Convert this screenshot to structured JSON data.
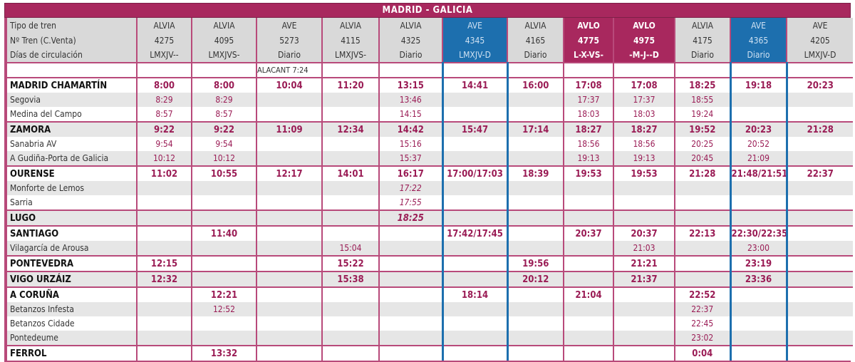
{
  "title": "MADRID - GALICIA",
  "header_labels": [
    "Tipo de tren",
    "Nº Tren (C.Venta)",
    "Días de circulación"
  ],
  "trains": [
    {
      "type": "ALVIA",
      "number": "4275",
      "days": "LMXJV--"
    },
    {
      "type": "ALVIA",
      "number": "4095",
      "days": "LMXJVS-"
    },
    {
      "type": "AVE",
      "number": "5273",
      "days": "Diario"
    },
    {
      "type": "ALVIA",
      "number": "4115",
      "days": "LMXJVS-"
    },
    {
      "type": "ALVIA",
      "number": "4325",
      "days": "Diario"
    },
    {
      "type": "AVE",
      "number": "4345",
      "days": "LMXJV-D"
    },
    {
      "type": "ALVIA",
      "number": "4165",
      "days": "Diario"
    },
    {
      "type": "AVLO",
      "number": "4775",
      "days": "L-X-VS-"
    },
    {
      "type": "AVLO",
      "number": "4975",
      "days": "-M-J--D"
    },
    {
      "type": "ALVIA",
      "number": "4175",
      "days": "Diario"
    },
    {
      "type": "AVE",
      "number": "4365",
      "days": "Diario"
    },
    {
      "type": "AVE",
      "number": "4205",
      "days": "LMXJV-D"
    }
  ],
  "note_row": [
    "",
    "",
    "ALACANT 7:24",
    "",
    "",
    "",
    "",
    "",
    "",
    "",
    "",
    ""
  ],
  "stations": [
    {
      "name": "MADRID CHAMARTÍN",
      "major": true,
      "times": [
        "8:00",
        "8:00",
        "10:04",
        "11:20",
        "13:15",
        "14:41",
        "16:00",
        "17:08",
        "17:08",
        "18:25",
        "19:18",
        "20:23"
      ]
    },
    {
      "name": "Segovia",
      "major": false,
      "times": [
        "8:29",
        "8:29",
        "",
        "",
        "13:46",
        "",
        "",
        "17:37",
        "17:37",
        "18:55",
        "",
        ""
      ]
    },
    {
      "name": "Medina del Campo",
      "major": false,
      "times": [
        "8:57",
        "8:57",
        "",
        "",
        "14:15",
        "",
        "",
        "18:03",
        "18:03",
        "19:24",
        "",
        ""
      ]
    },
    {
      "name": "ZAMORA",
      "major": true,
      "times": [
        "9:22",
        "9:22",
        "11:09",
        "12:34",
        "14:42",
        "15:47",
        "17:14",
        "18:27",
        "18:27",
        "19:52",
        "20:23",
        "21:28"
      ]
    },
    {
      "name": "Sanabria AV",
      "major": false,
      "times": [
        "9:54",
        "9:54",
        "",
        "",
        "15:16",
        "",
        "",
        "18:56",
        "18:56",
        "20:25",
        "20:52",
        ""
      ]
    },
    {
      "name": "A Gudiña-Porta de Galicia",
      "major": false,
      "times": [
        "10:12",
        "10:12",
        "",
        "",
        "15:37",
        "",
        "",
        "19:13",
        "19:13",
        "20:45",
        "21:09",
        ""
      ]
    },
    {
      "name": "OURENSE",
      "major": true,
      "times": [
        "11:02",
        "10:55",
        "12:17",
        "14:01",
        "16:17",
        "17:00/17:03",
        "18:39",
        "19:53",
        "19:53",
        "21:28",
        "21:48/21:51",
        "22:37"
      ]
    },
    {
      "name": "Monforte de Lemos",
      "major": false,
      "times": [
        "",
        "",
        "",
        "",
        "17:22",
        "",
        "",
        "",
        "",
        "",
        "",
        ""
      ]
    },
    {
      "name": "Sarria",
      "major": false,
      "times": [
        "",
        "",
        "",
        "",
        "17:55",
        "",
        "",
        "",
        "",
        "",
        "",
        ""
      ]
    },
    {
      "name": "LUGO",
      "major": true,
      "times": [
        "",
        "",
        "",
        "",
        "18:25",
        "",
        "",
        "",
        "",
        "",
        "",
        ""
      ]
    },
    {
      "name": "SANTIAGO",
      "major": true,
      "times": [
        "",
        "11:40",
        "",
        "",
        "",
        "17:42/17:45",
        "",
        "20:37",
        "20:37",
        "22:13",
        "22:30/22:35",
        ""
      ]
    },
    {
      "name": "Vilagarcía de Arousa",
      "major": false,
      "times": [
        "",
        "",
        "",
        "15:04",
        "",
        "",
        "",
        "",
        "21:03",
        "",
        "23:00",
        ""
      ]
    },
    {
      "name": "PONTEVEDRA",
      "major": true,
      "times": [
        "12:15",
        "",
        "",
        "15:22",
        "",
        "",
        "19:56",
        "",
        "21:21",
        "",
        "23:19",
        ""
      ]
    },
    {
      "name": "VIGO URZÁIZ",
      "major": true,
      "times": [
        "12:32",
        "",
        "",
        "15:38",
        "",
        "",
        "20:12",
        "",
        "21:37",
        "",
        "23:36",
        ""
      ]
    },
    {
      "name": "A CORUÑA",
      "major": true,
      "times": [
        "",
        "12:21",
        "",
        "",
        "",
        "18:14",
        "",
        "21:04",
        "",
        "22:52",
        "",
        ""
      ]
    },
    {
      "name": "Betanzos Infesta",
      "major": false,
      "times": [
        "",
        "12:52",
        "",
        "",
        "",
        "",
        "",
        "",
        "",
        "22:37",
        "",
        ""
      ]
    },
    {
      "name": "Betanzos Cidade",
      "major": false,
      "times": [
        "",
        "",
        "",
        "",
        "",
        "",
        "",
        "",
        "",
        "22:45",
        "",
        ""
      ]
    },
    {
      "name": "Pontedeume",
      "major": false,
      "times": [
        "",
        "",
        "",
        "",
        "",
        "",
        "",
        "",
        "",
        "23:02",
        "",
        ""
      ]
    },
    {
      "name": "FERROL",
      "major": true,
      "times": [
        "",
        "13:32",
        "",
        "",
        "",
        "",
        "",
        "",
        "",
        "0:04",
        "",
        ""
      ]
    }
  ],
  "colors": {
    "magenta": "#a8285e",
    "blue": "#1d6fae",
    "grey": "#d9d9d9"
  }
}
